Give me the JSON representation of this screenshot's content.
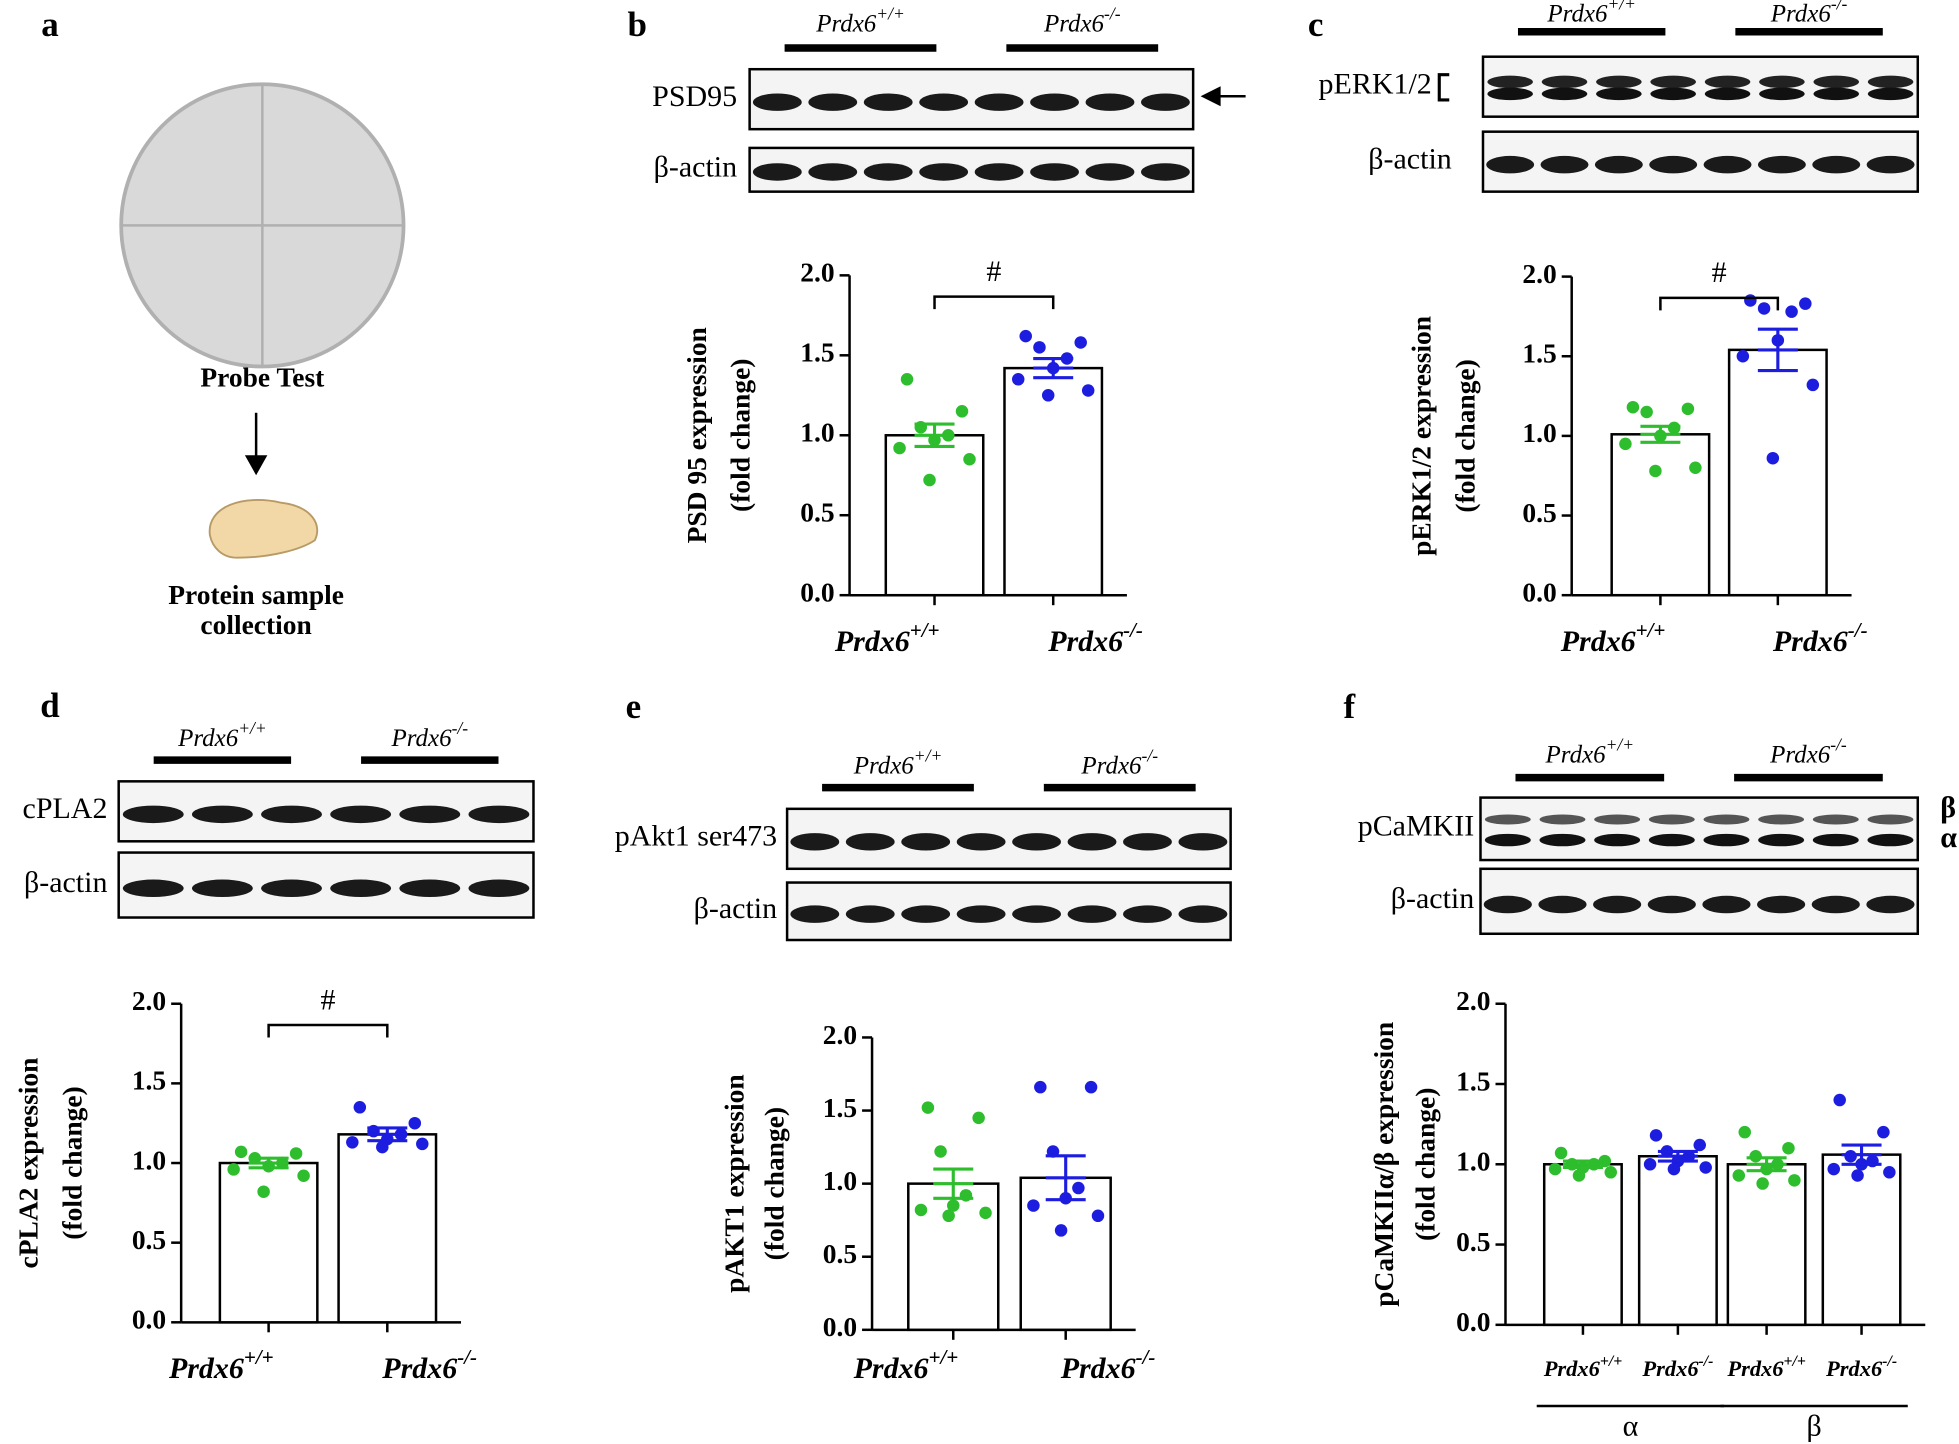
{
  "panel_a": {
    "label": "a",
    "title": "Probe Test",
    "caption": [
      "Protein sample",
      "collection"
    ]
  },
  "chart_data": [
    {
      "type": "bar",
      "panel": "b",
      "blot": {
        "groups": [
          "Prdx6+/+",
          "Prdx6-/-"
        ],
        "rows": [
          "PSD95",
          "β-actin"
        ]
      },
      "ylabel": [
        "PSD 95 expression",
        "(fold change)"
      ],
      "categories": [
        "Prdx6+/+",
        "Prdx6-/-"
      ],
      "values": [
        1.0,
        1.42
      ],
      "errors": [
        0.07,
        0.06
      ],
      "points": [
        [
          1.35,
          1.15,
          1.05,
          1.0,
          0.97,
          0.92,
          0.85,
          0.72
        ],
        [
          1.62,
          1.58,
          1.55,
          1.48,
          1.42,
          1.35,
          1.28,
          1.25
        ]
      ],
      "colors": [
        "#2dbd2d",
        "#1d1de0"
      ],
      "significance": "#",
      "ylim": [
        0,
        2
      ],
      "yticks": [
        {
          "value": 0,
          "label": "0.0"
        },
        0.5,
        {
          "value": 1,
          "label": "1.0"
        },
        1.5,
        {
          "value": 2,
          "label": "2.0"
        }
      ]
    },
    {
      "type": "bar",
      "panel": "c",
      "blot": {
        "groups": [
          "Prdx6+/+",
          "Prdx6-/-"
        ],
        "rows": [
          "pERK1/2",
          "β-actin"
        ]
      },
      "ylabel": [
        "pERK1/2 expression",
        "(fold change)"
      ],
      "categories": [
        "Prdx6+/+",
        "Prdx6-/-"
      ],
      "values": [
        1.01,
        1.54
      ],
      "errors": [
        0.05,
        0.13
      ],
      "points": [
        [
          1.18,
          1.17,
          1.15,
          1.05,
          1.0,
          0.95,
          0.8,
          0.78
        ],
        [
          1.85,
          1.83,
          1.8,
          1.78,
          1.6,
          1.5,
          1.32,
          0.86
        ]
      ],
      "colors": [
        "#2dbd2d",
        "#1d1de0"
      ],
      "significance": "#",
      "ylim": [
        0,
        2
      ],
      "yticks": [
        {
          "value": 0,
          "label": "0.0"
        },
        0.5,
        {
          "value": 1,
          "label": "1.0"
        },
        1.5,
        {
          "value": 2,
          "label": "2.0"
        }
      ]
    },
    {
      "type": "bar",
      "panel": "d",
      "blot": {
        "groups": [
          "Prdx6+/+",
          "Prdx6-/-"
        ],
        "rows": [
          "cPLA2",
          "β-actin"
        ]
      },
      "ylabel": [
        "cPLA2 expression",
        "(fold change)"
      ],
      "categories": [
        "Prdx6+/+",
        "Prdx6-/-"
      ],
      "values": [
        1.0,
        1.18
      ],
      "errors": [
        0.03,
        0.04
      ],
      "points": [
        [
          1.07,
          1.06,
          1.03,
          1.0,
          0.98,
          0.96,
          0.92,
          0.82
        ],
        [
          1.35,
          1.25,
          1.2,
          1.18,
          1.15,
          1.13,
          1.12,
          1.1
        ]
      ],
      "colors": [
        "#2dbd2d",
        "#1d1de0"
      ],
      "significance": "#",
      "ylim": [
        0,
        2
      ],
      "yticks": [
        {
          "value": 0,
          "label": "0.0"
        },
        0.5,
        {
          "value": 1,
          "label": "1.0"
        },
        1.5,
        {
          "value": 2,
          "label": "2.0"
        }
      ]
    },
    {
      "type": "bar",
      "panel": "e",
      "blot": {
        "groups": [
          "Prdx6+/+",
          "Prdx6-/-"
        ],
        "rows": [
          "pAkt1 ser473",
          "β-actin"
        ]
      },
      "ylabel": [
        "pAKT1 expression",
        "(fold change)"
      ],
      "categories": [
        "Prdx6+/+",
        "Prdx6-/-"
      ],
      "values": [
        1.0,
        1.04
      ],
      "errors": [
        0.1,
        0.15
      ],
      "points": [
        [
          1.52,
          1.45,
          1.22,
          0.92,
          0.85,
          0.82,
          0.8,
          0.78
        ],
        [
          1.66,
          1.66,
          1.22,
          0.97,
          0.9,
          0.85,
          0.78,
          0.68
        ]
      ],
      "colors": [
        "#2dbd2d",
        "#1d1de0"
      ],
      "ylim": [
        0,
        2
      ],
      "yticks": [
        {
          "value": 0,
          "label": "0.0"
        },
        0.5,
        {
          "value": 1,
          "label": "1.0"
        },
        1.5,
        {
          "value": 2,
          "label": "2.0"
        }
      ]
    },
    {
      "type": "bar",
      "panel": "f",
      "blot": {
        "groups": [
          "Prdx6+/+",
          "Prdx6-/-"
        ],
        "rows": [
          "pCaMKII",
          "β-actin"
        ],
        "side": [
          "β",
          "α"
        ]
      },
      "ylabel": [
        "pCaMKIIα/β expression",
        "(fold change)"
      ],
      "categories": [
        "Prdx6+/+",
        "Prdx6-/-",
        "Prdx6+/+",
        "Prdx6-/-"
      ],
      "groups": [
        "α",
        "β"
      ],
      "values": [
        1.0,
        1.05,
        1.0,
        1.06
      ],
      "errors": [
        0.02,
        0.03,
        0.04,
        0.06
      ],
      "points": [
        [
          1.07,
          1.02,
          1.0,
          1.0,
          0.98,
          0.97,
          0.95,
          0.93
        ],
        [
          1.18,
          1.12,
          1.08,
          1.05,
          1.02,
          1.0,
          0.98,
          0.97
        ],
        [
          1.2,
          1.1,
          1.05,
          1.0,
          0.97,
          0.93,
          0.9,
          0.88
        ],
        [
          1.4,
          1.2,
          1.05,
          1.02,
          1.0,
          0.97,
          0.95,
          0.93
        ]
      ],
      "colors": [
        "#2dbd2d",
        "#1d1de0",
        "#2dbd2d",
        "#1d1de0"
      ],
      "ylim": [
        0,
        2
      ],
      "yticks": [
        {
          "value": 0,
          "label": "0.0"
        },
        0.5,
        {
          "value": 1,
          "label": "1.0"
        },
        1.5,
        {
          "value": 2,
          "label": "2.0"
        }
      ]
    }
  ]
}
